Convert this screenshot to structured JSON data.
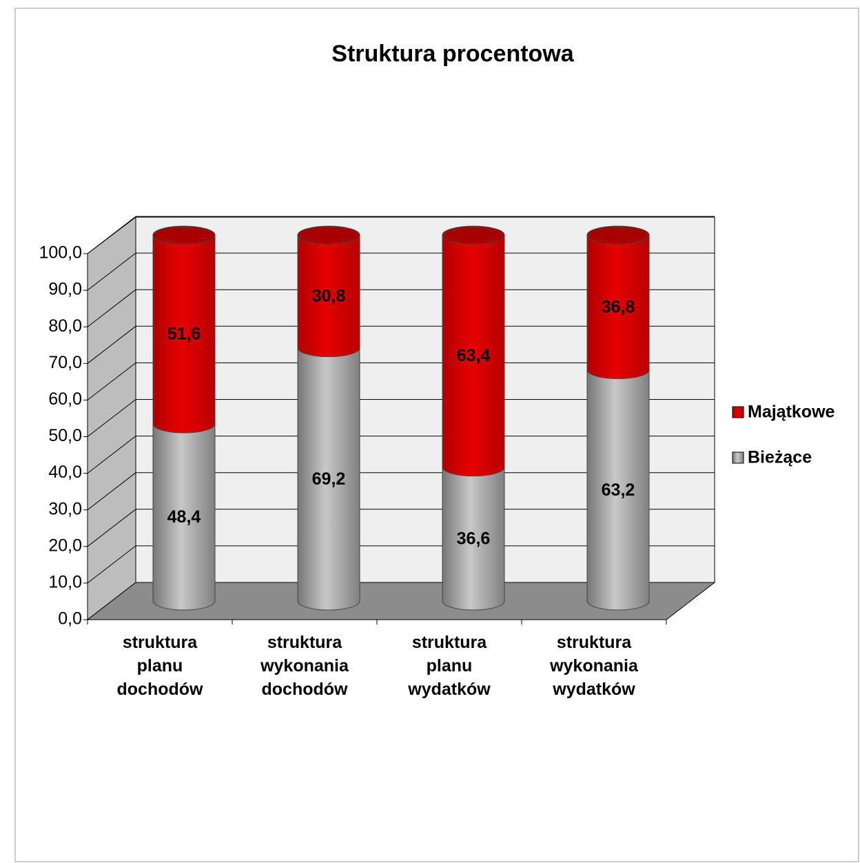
{
  "chart_data": {
    "type": "stacked-cylinder",
    "title": "Struktura procentowa",
    "categories": [
      "struktura planu dochodów",
      "struktura wykonania dochodów",
      "struktura planu wydatków",
      "struktura wykonania wydatków"
    ],
    "series": [
      {
        "name": "Bieżące",
        "color": "#9a9a9a",
        "values": [
          48.4,
          69.2,
          36.6,
          63.2
        ],
        "value_labels": [
          "48,4",
          "69,2",
          "36,6",
          "63,2"
        ]
      },
      {
        "name": "Majątkowe",
        "color": "#d40000",
        "values": [
          51.6,
          30.8,
          63.4,
          36.8
        ],
        "value_labels": [
          "51,6",
          "30,8",
          "63,4",
          "36,8"
        ]
      }
    ],
    "ylim": [
      0,
      100
    ],
    "yticks": [
      {
        "value": 0,
        "label": "0,0"
      },
      {
        "value": 10,
        "label": "10,0"
      },
      {
        "value": 20,
        "label": "20,0"
      },
      {
        "value": 30,
        "label": "30,0"
      },
      {
        "value": 40,
        "label": "40,0"
      },
      {
        "value": 50,
        "label": "50,0"
      },
      {
        "value": 60,
        "label": "60,0"
      },
      {
        "value": 70,
        "label": "70,0"
      },
      {
        "value": 80,
        "label": "80,0"
      },
      {
        "value": 90,
        "label": "90,0"
      },
      {
        "value": 100,
        "label": "100,0"
      }
    ],
    "grid": true,
    "legend": "right"
  }
}
